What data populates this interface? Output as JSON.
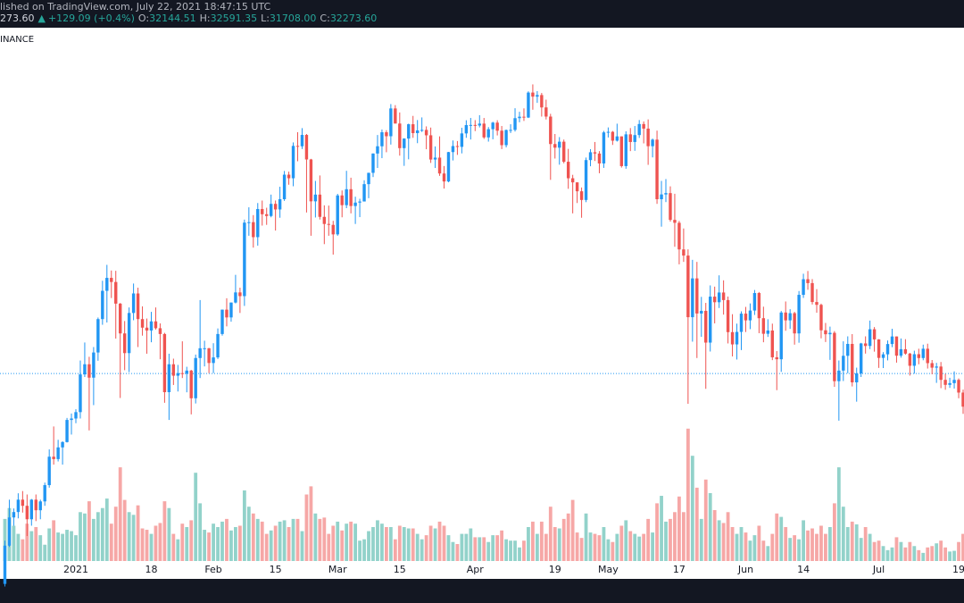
{
  "chart_data": {
    "type": "candlestick",
    "publisher_line": "lished on TradingView.com, July 22, 2021 18:47:15 UTC",
    "price_fragment": "273.60",
    "change_arrow": "▲",
    "change": "+129.09 (+0.4%)",
    "quote": [
      {
        "key": "O:",
        "value": 32144.51,
        "label": "32144.51"
      },
      {
        "key": "H:",
        "value": 32591.35,
        "label": "32591.35"
      },
      {
        "key": "L:",
        "value": 31708.0,
        "label": "31708.00"
      },
      {
        "key": "C:",
        "value": 32273.6,
        "label": "32273.60"
      }
    ],
    "symbol_fragment": "INANCE",
    "log_scale": true,
    "ylim": [
      20000,
      70000
    ],
    "volume_lim": [
      0,
      250000
    ],
    "colors": {
      "up": "#2196f3",
      "down": "#ef5350",
      "up_volume": "#92d2ca",
      "down_volume": "#f6a7a6",
      "last_price_line": "#2196f3"
    },
    "xticks": [
      {
        "value": 16,
        "label": "2021"
      },
      {
        "value": 33,
        "label": "18"
      },
      {
        "value": 47,
        "label": "Feb"
      },
      {
        "value": 61,
        "label": "15"
      },
      {
        "value": 75,
        "label": "Mar"
      },
      {
        "value": 89,
        "label": "15"
      },
      {
        "value": 106,
        "label": "Apr"
      },
      {
        "value": 124,
        "label": "19"
      },
      {
        "value": 136,
        "label": "May"
      },
      {
        "value": 152,
        "label": "17"
      },
      {
        "value": 167,
        "label": "Jun"
      },
      {
        "value": 180,
        "label": "14"
      },
      {
        "value": 197,
        "label": "Jul"
      },
      {
        "value": 215,
        "label": "19"
      }
    ],
    "open": [
      19420,
      21300,
      22800,
      23100,
      23800,
      23450,
      22700,
      23800,
      23200,
      23700,
      24650,
      26400,
      26250,
      27000,
      27350,
      28850,
      28950,
      29400,
      32200,
      33000,
      31950,
      33950,
      36800,
      39400,
      40650,
      40250,
      38200,
      35550,
      33900,
      37350,
      39150,
      36800,
      36050,
      35800,
      36600,
      36000,
      35500,
      30850,
      33000,
      32100,
      32300,
      32250,
      32500,
      30400,
      33500,
      34300,
      34300,
      33100,
      33550,
      35500,
      37650,
      36950,
      38300,
      39250,
      38900,
      46450,
      46500,
      44850,
      48000,
      47400,
      47200,
      48600,
      47950,
      49150,
      52150,
      51700,
      55900,
      55850,
      57400,
      54100,
      48900,
      49700,
      47100,
      46300,
      46200,
      45150,
      49600,
      48450,
      50350,
      48350,
      48750,
      48880,
      50970,
      52380,
      54880,
      55850,
      57770,
      57220,
      61190,
      59000,
      55600,
      56900,
      58900,
      57650,
      58030,
      58100,
      57350,
      54090,
      54340,
      52300,
      51300,
      55070,
      55880,
      55770,
      57610,
      58780,
      58800,
      58720,
      58990,
      57060,
      58200,
      59130,
      57990,
      56000,
      58080,
      58100,
      59770,
      59980,
      59860,
      63580,
      62960,
      63200,
      61340,
      60000,
      56150,
      55660,
      56470,
      53800,
      51700,
      51190,
      50100,
      49060,
      54020,
      55050,
      54880,
      53580,
      57750,
      57830,
      56610,
      57200,
      53240,
      57480,
      56430,
      57380,
      58930,
      58280,
      55860,
      56750,
      49150,
      49720,
      49880,
      46760,
      46430,
      43540,
      42900,
      36970,
      40600,
      37300,
      37540,
      34770,
      38850,
      38330,
      39240,
      38530,
      35660,
      34620,
      35680,
      37290,
      36690,
      37570,
      39190,
      36880,
      35520,
      35800,
      33560,
      33400,
      37390,
      36690,
      37330,
      35550,
      39020,
      40520,
      40140,
      38350,
      38090,
      35820,
      35480,
      35600,
      31680,
      32500,
      33680,
      34660,
      31590,
      32280,
      34700,
      34490,
      35910,
      35040,
      33510,
      33800,
      34650,
      35290,
      33690,
      34220,
      33860,
      32880,
      33810,
      33500,
      34260,
      33090,
      32730,
      32820,
      31780,
      31400,
      31530,
      31780,
      30820
    ],
    "high": [
      21560,
      23800,
      23300,
      24170,
      24300,
      24100,
      23840,
      24100,
      23800,
      24800,
      26870,
      28400,
      27500,
      27400,
      28990,
      29300,
      29600,
      33300,
      34780,
      33600,
      34400,
      36940,
      40370,
      41950,
      41380,
      41350,
      38260,
      36630,
      37850,
      40100,
      39700,
      37950,
      36850,
      37450,
      37850,
      36420,
      35600,
      33850,
      33450,
      32950,
      34880,
      32800,
      32560,
      33780,
      38530,
      34930,
      34330,
      34720,
      35980,
      37660,
      38700,
      38310,
      40950,
      39700,
      46790,
      48200,
      47300,
      48700,
      48990,
      48150,
      49700,
      49000,
      50650,
      52620,
      52530,
      56370,
      57770,
      58350,
      57530,
      54180,
      51370,
      52050,
      48430,
      48400,
      46650,
      49790,
      50200,
      52640,
      51770,
      49450,
      49200,
      51450,
      52400,
      54900,
      57390,
      58150,
      58060,
      61840,
      61680,
      60600,
      56940,
      58980,
      60100,
      59500,
      59880,
      58600,
      58430,
      55830,
      57200,
      53250,
      55100,
      56640,
      56560,
      58400,
      59470,
      59800,
      59490,
      60200,
      59800,
      58500,
      59250,
      59470,
      58650,
      58150,
      58900,
      61220,
      60700,
      61200,
      63770,
      64850,
      63800,
      63520,
      62500,
      60400,
      57530,
      57100,
      56760,
      55500,
      52130,
      51200,
      50560,
      54350,
      55460,
      56430,
      55200,
      57960,
      58450,
      57950,
      58980,
      57200,
      57900,
      58360,
      58650,
      59500,
      59300,
      59590,
      56900,
      58000,
      51370,
      51600,
      50700,
      49800,
      46640,
      45800,
      43550,
      42460,
      42250,
      38830,
      38270,
      39920,
      39800,
      40900,
      40410,
      38860,
      37240,
      36400,
      37500,
      37900,
      38220,
      39480,
      39290,
      37920,
      36790,
      36400,
      34070,
      37530,
      38400,
      37690,
      37450,
      39380,
      41060,
      41330,
      40530,
      39560,
      38200,
      36460,
      36140,
      35750,
      33300,
      34880,
      35300,
      35490,
      32730,
      34750,
      35300,
      36670,
      36100,
      35060,
      33980,
      34950,
      35950,
      35290,
      35120,
      35060,
      33920,
      34100,
      34260,
      34600,
      34680,
      33340,
      33110,
      33180,
      32250,
      31940,
      32440,
      31890,
      31040
    ],
    "low": [
      19300,
      21230,
      22350,
      22750,
      23070,
      21800,
      22350,
      22600,
      22700,
      23450,
      24500,
      25900,
      26100,
      25900,
      27320,
      27850,
      28620,
      28950,
      32000,
      28130,
      29900,
      33280,
      36300,
      36500,
      38720,
      35110,
      30420,
      32530,
      32380,
      36700,
      34400,
      35360,
      33850,
      34800,
      35880,
      33400,
      30070,
      28850,
      31390,
      30900,
      31920,
      30840,
      29240,
      30020,
      31920,
      32830,
      32300,
      32300,
      33420,
      35360,
      36160,
      36570,
      38220,
      37350,
      37990,
      45000,
      43730,
      43940,
      46120,
      46200,
      47050,
      45570,
      47000,
      48950,
      50900,
      50710,
      53860,
      55480,
      47600,
      45000,
      47030,
      46800,
      44100,
      45000,
      43000,
      45000,
      47050,
      48100,
      47500,
      46300,
      47070,
      48900,
      49270,
      51850,
      53000,
      54270,
      55050,
      56080,
      59000,
      54600,
      53270,
      54120,
      57000,
      56270,
      57820,
      55450,
      53650,
      53000,
      52000,
      50430,
      51200,
      53970,
      54700,
      54900,
      57000,
      56770,
      57930,
      58450,
      56850,
      56480,
      56800,
      57330,
      55470,
      55700,
      57670,
      57870,
      59180,
      59370,
      59790,
      61000,
      62020,
      60000,
      59580,
      51500,
      54220,
      53420,
      53600,
      50400,
      47500,
      48700,
      47000,
      48800,
      53220,
      53900,
      52330,
      53010,
      57050,
      56030,
      56490,
      53050,
      52900,
      55200,
      55240,
      56980,
      56240,
      53400,
      54370,
      48600,
      46000,
      48810,
      46560,
      43820,
      42000,
      42250,
      30000,
      34850,
      33500,
      35260,
      31100,
      34030,
      36420,
      37800,
      37200,
      34700,
      33630,
      33380,
      34150,
      35670,
      35920,
      37170,
      35570,
      34800,
      35250,
      33330,
      31000,
      32400,
      35780,
      35940,
      34600,
      34760,
      38730,
      39500,
      38120,
      37370,
      35130,
      34820,
      33350,
      31250,
      28800,
      31690,
      32290,
      31280,
      30150,
      32000,
      33860,
      34230,
      34020,
      32710,
      32700,
      33310,
      34390,
      33130,
      33530,
      33770,
      32110,
      32260,
      33000,
      33320,
      32660,
      32210,
      31550,
      31150,
      31030,
      31170,
      31120,
      30400,
      29280
    ],
    "close": [
      21300,
      22800,
      23100,
      23800,
      23450,
      22700,
      23800,
      23200,
      23700,
      24650,
      26400,
      26250,
      27000,
      27350,
      28850,
      28950,
      29400,
      32200,
      33000,
      31950,
      33950,
      36800,
      39400,
      40650,
      40250,
      38200,
      35550,
      33900,
      37350,
      39150,
      36800,
      36050,
      35800,
      36600,
      36000,
      35500,
      30850,
      33000,
      32100,
      32300,
      32250,
      32500,
      30400,
      33500,
      34300,
      34300,
      33100,
      33550,
      35500,
      37650,
      36950,
      38300,
      39250,
      38900,
      46450,
      46500,
      44850,
      48000,
      47400,
      47200,
      48600,
      47950,
      49150,
      52150,
      51700,
      55900,
      55850,
      57400,
      54100,
      48900,
      49700,
      47100,
      46300,
      46200,
      45150,
      49600,
      48450,
      50350,
      48350,
      48750,
      48880,
      50970,
      52380,
      54880,
      55850,
      57770,
      57220,
      61190,
      59000,
      55600,
      56900,
      58900,
      57650,
      58030,
      58100,
      57350,
      54090,
      54340,
      52300,
      51300,
      55070,
      55880,
      55770,
      57610,
      58780,
      58800,
      58720,
      58990,
      57060,
      58200,
      59130,
      57990,
      56000,
      58080,
      58100,
      59770,
      59980,
      59860,
      63580,
      62960,
      63200,
      61340,
      60000,
      56150,
      55660,
      56470,
      53800,
      51700,
      51190,
      50100,
      49060,
      54020,
      55050,
      54880,
      53580,
      57750,
      57830,
      56610,
      57200,
      53240,
      57480,
      56430,
      57380,
      58930,
      58280,
      55860,
      56750,
      49150,
      49720,
      49880,
      46760,
      46430,
      43540,
      42900,
      36970,
      40600,
      37300,
      37540,
      34770,
      38850,
      38330,
      39240,
      38530,
      35660,
      34620,
      35680,
      37290,
      36690,
      37570,
      39190,
      36880,
      35520,
      35800,
      33560,
      33400,
      37390,
      36690,
      37330,
      35550,
      39020,
      40520,
      40140,
      38350,
      38090,
      35820,
      35480,
      35600,
      31680,
      32500,
      33680,
      34660,
      31590,
      32280,
      34700,
      34490,
      35910,
      35040,
      33510,
      33800,
      34650,
      35290,
      33690,
      34220,
      33860,
      32880,
      33810,
      33500,
      34260,
      33090,
      32730,
      32820,
      31780,
      31400,
      31530,
      31780,
      30820,
      29790
    ],
    "volume": [
      62000,
      78000,
      52000,
      40000,
      32000,
      55000,
      44000,
      50000,
      38000,
      24000,
      48000,
      60000,
      42000,
      40000,
      46000,
      44000,
      38000,
      72000,
      70000,
      88000,
      62000,
      72000,
      78000,
      92000,
      55000,
      80000,
      138000,
      90000,
      72000,
      68000,
      82000,
      48000,
      46000,
      40000,
      52000,
      56000,
      88000,
      78000,
      40000,
      32000,
      55000,
      50000,
      60000,
      130000,
      85000,
      46000,
      42000,
      55000,
      50000,
      58000,
      62000,
      45000,
      50000,
      52000,
      104000,
      80000,
      70000,
      62000,
      58000,
      40000,
      45000,
      52000,
      58000,
      60000,
      50000,
      62000,
      62000,
      44000,
      98000,
      110000,
      70000,
      62000,
      64000,
      40000,
      52000,
      58000,
      45000,
      55000,
      58000,
      55000,
      30000,
      32000,
      44000,
      50000,
      60000,
      55000,
      50000,
      50000,
      32000,
      52000,
      50000,
      48000,
      48000,
      40000,
      32000,
      38000,
      52000,
      48000,
      58000,
      52000,
      38000,
      28000,
      25000,
      40000,
      40000,
      48000,
      35000,
      35000,
      35000,
      28000,
      38000,
      38000,
      45000,
      32000,
      30000,
      30000,
      20000,
      30000,
      50000,
      58000,
      40000,
      58000,
      40000,
      80000,
      50000,
      48000,
      62000,
      70000,
      90000,
      42000,
      34000,
      70000,
      42000,
      40000,
      38000,
      50000,
      32000,
      28000,
      40000,
      52000,
      60000,
      44000,
      40000,
      36000,
      40000,
      62000,
      42000,
      85000,
      96000,
      58000,
      62000,
      72000,
      95000,
      72000,
      195000,
      155000,
      108000,
      62000,
      120000,
      100000,
      75000,
      60000,
      56000,
      72000,
      50000,
      40000,
      50000,
      42000,
      30000,
      38000,
      52000,
      30000,
      22000,
      40000,
      70000,
      65000,
      50000,
      34000,
      38000,
      32000,
      60000,
      45000,
      48000,
      40000,
      52000,
      40000,
      50000,
      85000,
      138000,
      80000,
      50000,
      58000,
      54000,
      34000,
      50000,
      40000,
      28000,
      30000,
      22000,
      16000,
      20000,
      35000,
      28000,
      20000,
      28000,
      22000,
      16000,
      12000,
      20000,
      22000,
      26000,
      30000,
      20000,
      14000,
      15000,
      28000,
      40000
    ]
  }
}
